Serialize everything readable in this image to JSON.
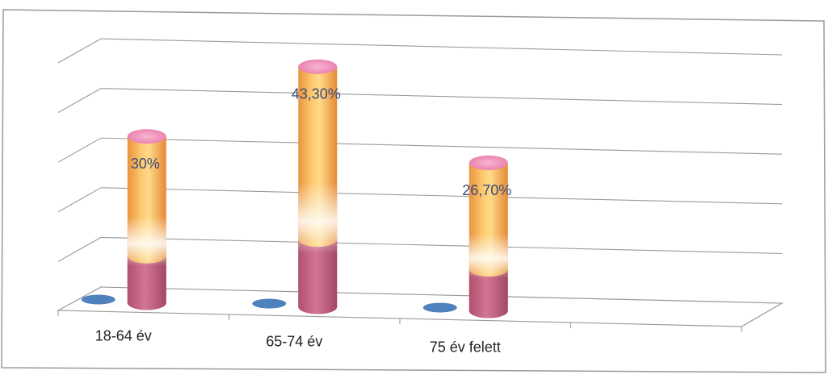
{
  "chart_data": {
    "type": "bar",
    "style": "3d-cylinder",
    "categories": [
      "18-64 év",
      "65-74 év",
      "75 év felett",
      ""
    ],
    "series": [
      {
        "values": [
          0,
          0,
          0,
          null
        ],
        "color": "#4f81bd"
      },
      {
        "values": [
          30,
          43.3,
          26.7,
          null
        ],
        "color": "#f6a84c"
      }
    ],
    "data_labels": [
      "30%",
      "43,30%",
      "26,70%"
    ],
    "ylim": [
      0,
      50
    ],
    "grid": true,
    "legend": "none",
    "colors": {
      "cylinder_top": "#f08cb6",
      "cylinder_base": "#b9507e",
      "gridline": "#9a9a9a"
    }
  }
}
